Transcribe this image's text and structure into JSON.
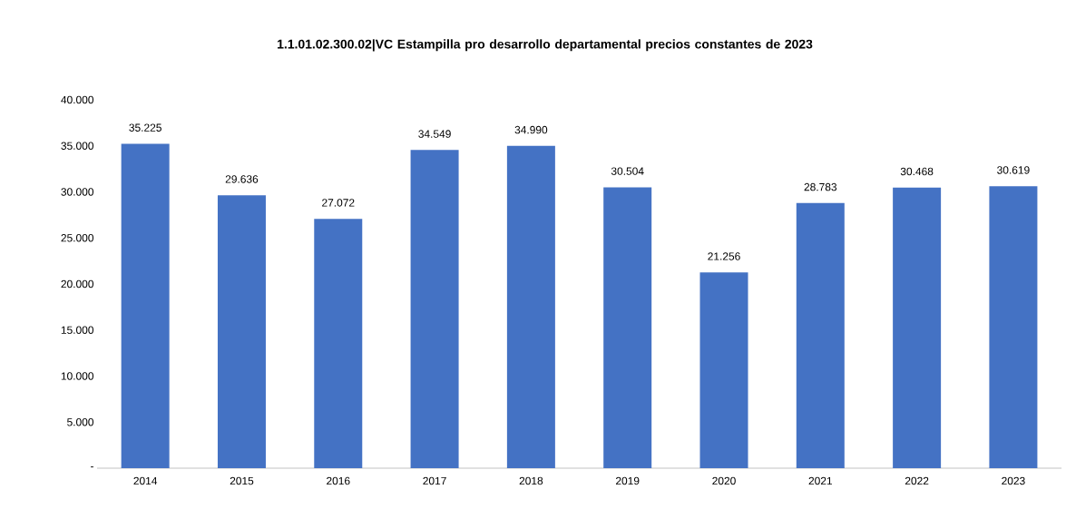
{
  "chart_data": {
    "type": "bar",
    "title": "1.1.01.02.300.02|VC Estampilla pro desarrollo departamental precios constantes de 2023",
    "categories": [
      "2014",
      "2015",
      "2016",
      "2017",
      "2018",
      "2019",
      "2020",
      "2021",
      "2022",
      "2023"
    ],
    "values": [
      35225,
      29636,
      27072,
      34549,
      34990,
      30504,
      21256,
      28783,
      30468,
      30619
    ],
    "value_labels": [
      "35.225",
      "29.636",
      "27.072",
      "34.549",
      "34.990",
      "30.504",
      "21.256",
      "28.783",
      "30.468",
      "30.619"
    ],
    "color": "#4472c4",
    "ylim": [
      0,
      40000
    ],
    "yticks": [
      {
        "value": 0,
        "label": "-"
      },
      {
        "value": 5000,
        "label": "5.000"
      },
      {
        "value": 10000,
        "label": "10.000"
      },
      {
        "value": 15000,
        "label": "15.000"
      },
      {
        "value": 20000,
        "label": "20.000"
      },
      {
        "value": 25000,
        "label": "25.000"
      },
      {
        "value": 30000,
        "label": "30.000"
      },
      {
        "value": 35000,
        "label": "35.000"
      },
      {
        "value": 40000,
        "label": "40.000"
      }
    ]
  }
}
